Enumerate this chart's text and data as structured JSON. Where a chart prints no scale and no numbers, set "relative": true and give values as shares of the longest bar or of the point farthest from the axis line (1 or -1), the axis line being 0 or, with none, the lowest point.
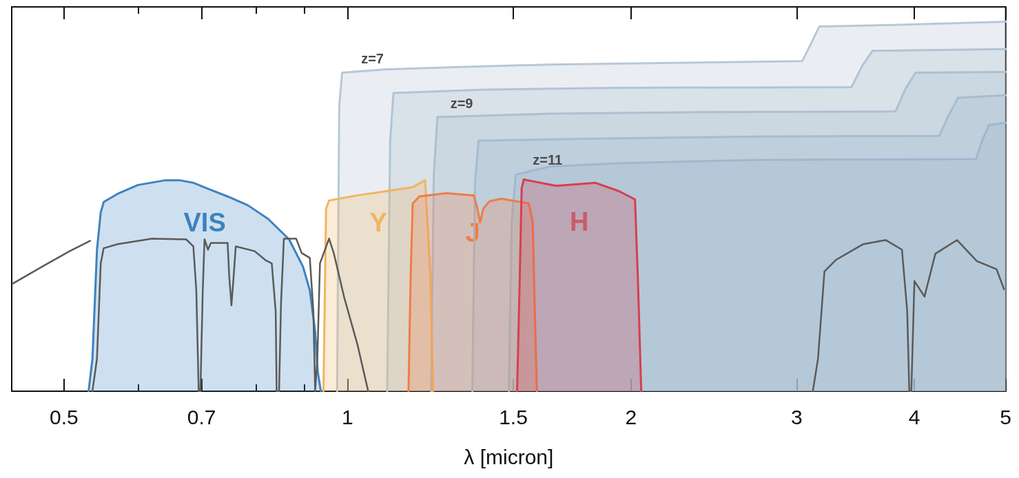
{
  "chart_data": {
    "type": "area",
    "relative": true,
    "xlabel": "λ [micron]",
    "log": "x",
    "xlim": [
      0.44,
      5
    ],
    "xticks": [
      0.5,
      {
        "value": 0.6,
        "label": null
      },
      0.7,
      {
        "value": 0.8,
        "label": null
      },
      {
        "value": 0.9,
        "label": null
      },
      1,
      1.5,
      2,
      3,
      4,
      5
    ],
    "legend": false,
    "grid": false,
    "marker": "none",
    "annotations": [
      {
        "text": "z=7",
        "x": 1.034,
        "y": 0.87
      },
      {
        "text": "z=9",
        "x": 1.286,
        "y": 0.75
      },
      {
        "text": "z=11",
        "x": 1.573,
        "y": 0.597
      }
    ],
    "series": [
      {
        "color": "#b8c8d6",
        "x": [
          0.975,
          0.98,
          0.987,
          1.097,
          1.297,
          1.641,
          2.296,
          3.04,
          3.1,
          3.17,
          3.8,
          5
        ],
        "values": [
          0,
          0.77,
          0.862,
          0.871,
          0.877,
          0.884,
          0.889,
          0.893,
          0.936,
          0.987,
          0.991,
          1
        ]
      },
      {
        "color": "#b2c4d4",
        "x": [
          1.102,
          1.11,
          1.119,
          1.387,
          1.941,
          3.43,
          3.52,
          3.61,
          5
        ],
        "values": [
          0,
          0.678,
          0.807,
          0.816,
          0.821,
          0.823,
          0.88,
          0.921,
          0.926
        ]
      },
      {
        "color": "#acc0d2",
        "x": [
          1.227,
          1.235,
          1.246,
          1.641,
          2.296,
          3.82,
          3.91,
          4.01,
          5
        ],
        "values": [
          0,
          0.586,
          0.742,
          0.751,
          0.755,
          0.757,
          0.816,
          0.862,
          0.864
        ]
      },
      {
        "color": "#a6bcd0",
        "x": [
          1.357,
          1.366,
          1.378,
          1.785,
          2.715,
          4.25,
          4.34,
          4.45,
          5
        ],
        "values": [
          0,
          0.567,
          0.678,
          0.683,
          0.689,
          0.691,
          0.742,
          0.794,
          0.801
        ]
      },
      {
        "color": "#a0b8ce",
        "x": [
          1.484,
          1.494,
          1.509,
          1.641,
          1.941,
          2.715,
          4.65,
          4.72,
          4.8,
          5
        ],
        "values": [
          0,
          0.457,
          0.586,
          0.608,
          0.617,
          0.626,
          0.628,
          0.678,
          0.72,
          0.727
        ]
      },
      {
        "name": "VIS",
        "color": "#3d82c0",
        "x": [
          0.531,
          0.536,
          0.542,
          0.547,
          0.551,
          0.57,
          0.599,
          0.641,
          0.663,
          0.686,
          0.709,
          0.746,
          0.784,
          0.824,
          0.867,
          0.897,
          0.912,
          0.924,
          0.93,
          0.937
        ],
        "values": [
          0,
          0.088,
          0.383,
          0.484,
          0.512,
          0.534,
          0.558,
          0.571,
          0.571,
          0.564,
          0.549,
          0.527,
          0.503,
          0.466,
          0.411,
          0.337,
          0.273,
          0.162,
          0.052,
          0
        ]
      },
      {
        "name": "Y",
        "color": "#f0b560",
        "x": [
          0.943,
          0.949,
          0.956,
          1.025,
          1.097,
          1.173,
          1.209,
          1.225,
          1.233
        ],
        "values": [
          0,
          0.494,
          0.516,
          0.53,
          0.541,
          0.552,
          0.571,
          0.309,
          0
        ]
      },
      {
        "name": "J",
        "color": "#ef7d47",
        "x": [
          1.161,
          1.167,
          1.173,
          1.192,
          1.273,
          1.362,
          1.374,
          1.383,
          1.394,
          1.415,
          1.457,
          1.558,
          1.573,
          1.581,
          1.589
        ],
        "values": [
          0,
          0.309,
          0.508,
          0.527,
          0.536,
          0.53,
          0.494,
          0.457,
          0.494,
          0.514,
          0.521,
          0.508,
          0.457,
          0.217,
          0
        ]
      },
      {
        "name": "H",
        "color": "#d63f50",
        "x": [
          1.514,
          1.524,
          1.531,
          1.539,
          1.665,
          1.833,
          1.944,
          2.02,
          2.034,
          2.051
        ],
        "values": [
          0,
          0.309,
          0.549,
          0.573,
          0.556,
          0.564,
          0.541,
          0.519,
          0.309,
          0
        ]
      },
      {
        "type": "line",
        "color": "#5a5a5a",
        "x": [
          0.441,
          0.474,
          0.507,
          0.533,
          0.534,
          0.536,
          0.542,
          0.547,
          0.551,
          0.57,
          0.62,
          0.674,
          0.686,
          0.691,
          0.695,
          0.698,
          0.702,
          0.705,
          0.711,
          0.716,
          0.746,
          0.749,
          0.753,
          0.757,
          0.761,
          0.797,
          0.818,
          0.831,
          0.839,
          0.841,
          0.846,
          0.85,
          0.856,
          0.882,
          0.894,
          0.912,
          0.92,
          0.924,
          0.929,
          0.935,
          0.956,
          0.967,
          0.992,
          1.025,
          1.052,
          1.06,
          3.12,
          3.16,
          3.21,
          3.3,
          3.53,
          3.73,
          3.88,
          3.93,
          3.95,
          3.97,
          4.0,
          4.1,
          4.21,
          4.44,
          4.66,
          4.89,
          4.98
        ],
        "values": [
          0.291,
          0.337,
          0.379,
          0.407,
          null,
          0,
          0.088,
          0.346,
          0.387,
          0.398,
          0.413,
          0.411,
          0.392,
          0.273,
          0,
          0,
          0.273,
          0.411,
          0.383,
          0.401,
          0.401,
          0.309,
          0.232,
          0.309,
          0.392,
          0.379,
          0.355,
          0.346,
          0.217,
          0,
          0,
          0.236,
          0.413,
          0.413,
          0.374,
          0.361,
          0.217,
          0,
          0.088,
          0.346,
          0.413,
          0.374,
          0.254,
          0.125,
          0,
          null,
          0,
          0.088,
          0.324,
          0.355,
          0.398,
          0.409,
          0.383,
          0.217,
          0,
          0,
          0.298,
          0.256,
          0.372,
          0.409,
          0.352,
          0.33,
          0.276
        ]
      }
    ]
  }
}
